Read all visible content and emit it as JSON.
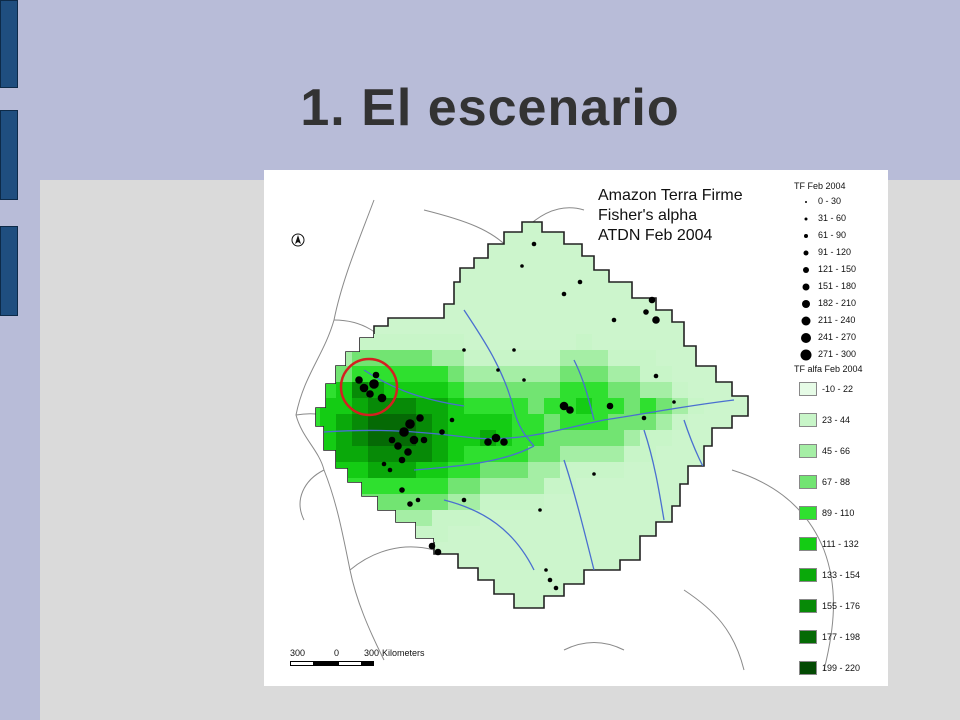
{
  "slide": {
    "title": "1. El escenario"
  },
  "map": {
    "title_lines": [
      "Amazon Terra Firme",
      "Fisher's alpha",
      "ATDN Feb 2004"
    ],
    "north_arrow_icon": "north-arrow-icon",
    "highlight_color": "#d42020",
    "scale": {
      "left": "300",
      "center": "0",
      "right": "300",
      "unit": "Kilometers"
    }
  },
  "legend": {
    "plots_heading": "TF Feb 2004",
    "plots": [
      {
        "label": "0 - 30",
        "dot": 2
      },
      {
        "label": "31 - 60",
        "dot": 3
      },
      {
        "label": "61 - 90",
        "dot": 4
      },
      {
        "label": "91 - 120",
        "dot": 5
      },
      {
        "label": "121 - 150",
        "dot": 6
      },
      {
        "label": "151 - 180",
        "dot": 7
      },
      {
        "label": "182 - 210",
        "dot": 8
      },
      {
        "label": "211 - 240",
        "dot": 9
      },
      {
        "label": "241 - 270",
        "dot": 10
      },
      {
        "label": "271 - 300",
        "dot": 11
      }
    ],
    "alpha_heading": "TF alfa Feb 2004",
    "alpha": [
      {
        "label": "-10 - 22",
        "color": "#e6fbe6"
      },
      {
        "label": "23 - 44",
        "color": "#c8f5c8"
      },
      {
        "label": "45 - 66",
        "color": "#a5eea5"
      },
      {
        "label": "67 - 88",
        "color": "#72e472"
      },
      {
        "label": "89 - 110",
        "color": "#2fe02f"
      },
      {
        "label": "111 - 132",
        "color": "#14cc14"
      },
      {
        "label": "133 - 154",
        "color": "#0aa90a"
      },
      {
        "label": "155 - 176",
        "color": "#078a07"
      },
      {
        "label": "177 - 198",
        "color": "#056a05"
      },
      {
        "label": "199 - 220",
        "color": "#034a03"
      }
    ]
  }
}
